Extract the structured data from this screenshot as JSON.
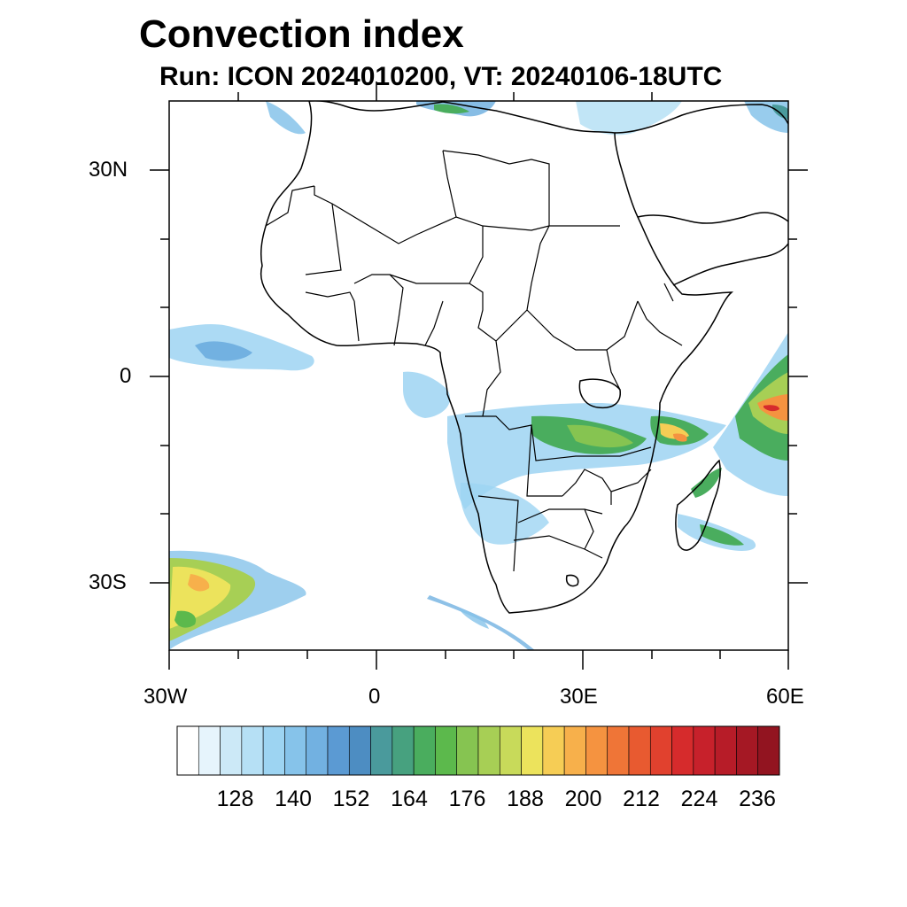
{
  "title": "Convection index",
  "subtitle": "Run: ICON 2024010200,  VT: 20240106-18UTC",
  "axes": {
    "y_labels": [
      "30N",
      "0",
      "30S"
    ],
    "x_labels": [
      "30W",
      "0",
      "30E",
      "60E"
    ]
  },
  "colorbar": {
    "labels": [
      "128",
      "140",
      "152",
      "164",
      "176",
      "188",
      "200",
      "212",
      "224",
      "236"
    ],
    "colors": [
      "#ffffff",
      "#e6f4fc",
      "#cce9f7",
      "#b6e0f5",
      "#9dd4f2",
      "#86c3ea",
      "#72b1e1",
      "#5b9ad3",
      "#4d8dc2",
      "#4a9a9c",
      "#47a17f",
      "#4aad5e",
      "#5cb94c",
      "#86c451",
      "#a7cf55",
      "#c8da5a",
      "#ece35c",
      "#f6cd55",
      "#f7b04b",
      "#f59340",
      "#ef7537",
      "#e85a30",
      "#e1412e",
      "#d62b2c",
      "#c7212b",
      "#b71c28",
      "#a51824",
      "#921420"
    ]
  }
}
